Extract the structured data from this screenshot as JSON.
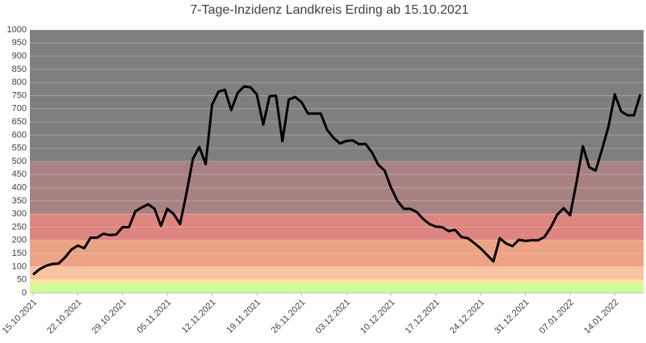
{
  "chart_data": {
    "type": "line",
    "title": "7-Tage-Inzidenz Landkreis Erding ab 15.10.2021",
    "categories": [
      "15.10.2021",
      null,
      null,
      null,
      null,
      null,
      null,
      "22.10.2021",
      null,
      null,
      null,
      null,
      null,
      null,
      "29.10.2021",
      null,
      null,
      null,
      null,
      null,
      null,
      "05.11.2021",
      null,
      null,
      null,
      null,
      null,
      null,
      "12.11.2021",
      null,
      null,
      null,
      null,
      null,
      null,
      "19.11.2021",
      null,
      null,
      null,
      null,
      null,
      null,
      "26.11.2021",
      null,
      null,
      null,
      null,
      null,
      null,
      "03.12.2021",
      null,
      null,
      null,
      null,
      null,
      null,
      "10.12.2021",
      null,
      null,
      null,
      null,
      null,
      null,
      "17.12.2021",
      null,
      null,
      null,
      null,
      null,
      null,
      "24.12.2021",
      null,
      null,
      null,
      null,
      null,
      null,
      "31.12.2021",
      null,
      null,
      null,
      null,
      null,
      null,
      "07.01.2022",
      null,
      null,
      null,
      null,
      null,
      null,
      "14.01.2022",
      null,
      null,
      null,
      null
    ],
    "values": [
      70,
      90,
      103,
      110,
      112,
      135,
      165,
      180,
      170,
      210,
      210,
      225,
      220,
      222,
      250,
      250,
      310,
      325,
      337,
      320,
      255,
      320,
      300,
      262,
      380,
      510,
      555,
      490,
      715,
      765,
      772,
      695,
      760,
      785,
      782,
      755,
      640,
      748,
      750,
      577,
      735,
      745,
      725,
      682,
      682,
      682,
      620,
      590,
      568,
      578,
      580,
      565,
      567,
      535,
      487,
      465,
      400,
      350,
      320,
      320,
      308,
      282,
      262,
      252,
      250,
      235,
      240,
      213,
      208,
      190,
      170,
      145,
      120,
      208,
      188,
      178,
      202,
      198,
      200,
      200,
      213,
      250,
      298,
      322,
      295,
      420,
      558,
      478,
      465,
      545,
      632,
      755,
      690,
      675,
      675,
      755
    ],
    "color": "#000000",
    "ylim": [
      0,
      1000
    ],
    "yticks": [
      0,
      50,
      100,
      150,
      200,
      250,
      300,
      350,
      400,
      450,
      500,
      550,
      600,
      650,
      700,
      750,
      800,
      850,
      900,
      950,
      1000
    ],
    "grid": true,
    "bands": [
      {
        "from": 0,
        "to": 35,
        "color": "#ccff99"
      },
      {
        "from": 35,
        "to": 50,
        "color": "#ffe699"
      },
      {
        "from": 50,
        "to": 100,
        "color": "#f8c4a0"
      },
      {
        "from": 100,
        "to": 200,
        "color": "#eba384"
      },
      {
        "from": 200,
        "to": 300,
        "color": "#dd8580"
      },
      {
        "from": 300,
        "to": 500,
        "color": "#a88282"
      },
      {
        "from": 500,
        "to": 1000,
        "color": "#7f7f7f"
      }
    ]
  }
}
